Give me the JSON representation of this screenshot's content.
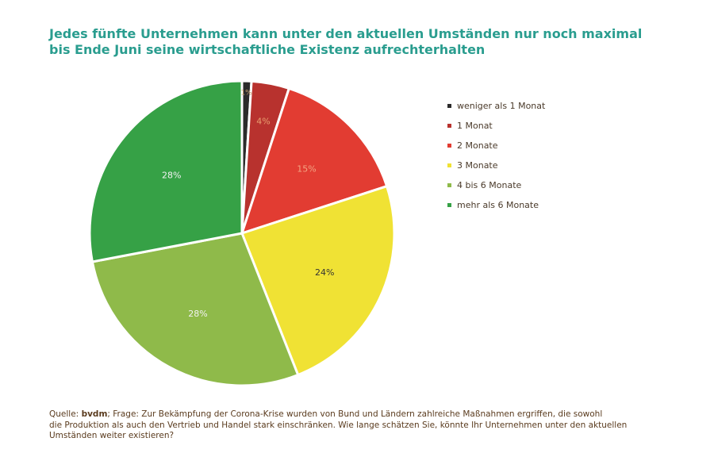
{
  "title": {
    "line1": "Jedes fünfte Unternehmen kann unter den aktuellen Umständen nur noch maximal",
    "line2": "bis Ende Juni seine wirtschaftliche Existenz aufrechterhalten"
  },
  "chart_data": {
    "type": "pie",
    "title": "Jedes fünfte Unternehmen kann unter den aktuellen Umständen nur noch maximal bis Ende Juni seine wirtschaftliche Existenz aufrechterhalten",
    "slices": [
      {
        "label": "weniger als 1 Monat",
        "value": 1,
        "display": "1%",
        "color": "#2b2b2b",
        "text_color": "#c8a070"
      },
      {
        "label": "1 Monat",
        "value": 4,
        "display": "4%",
        "color": "#b8322e",
        "text_color": "#e8a070"
      },
      {
        "label": "2 Monate",
        "value": 15,
        "display": "15%",
        "color": "#e23c32",
        "text_color": "#f3a483"
      },
      {
        "label": "3 Monate",
        "value": 24,
        "display": "24%",
        "color": "#f0e234",
        "text_color": "#333333"
      },
      {
        "label": "4 bis 6 Monate",
        "value": 28,
        "display": "28%",
        "color": "#8fba4a",
        "text_color": "#f2f2f2"
      },
      {
        "label": "mehr als 6 Monate",
        "value": 28,
        "display": "28%",
        "color": "#36a146",
        "text_color": "#f2f2f2"
      }
    ],
    "legend_position": "right"
  },
  "source": {
    "prefix": "Quelle: ",
    "org": "bvdm",
    "line1_rest": "; Frage: Zur Bekämpfung der Corona-Krise wurden von Bund und Ländern zahlreiche Maßnahmen ergriffen, die sowohl",
    "line2": "die Produktion als auch den Vertrieb und Handel stark einschränken. Wie lange schätzen Sie, könnte Ihr Unternehmen unter den aktuellen",
    "line3": "Umständen weiter existieren?"
  }
}
